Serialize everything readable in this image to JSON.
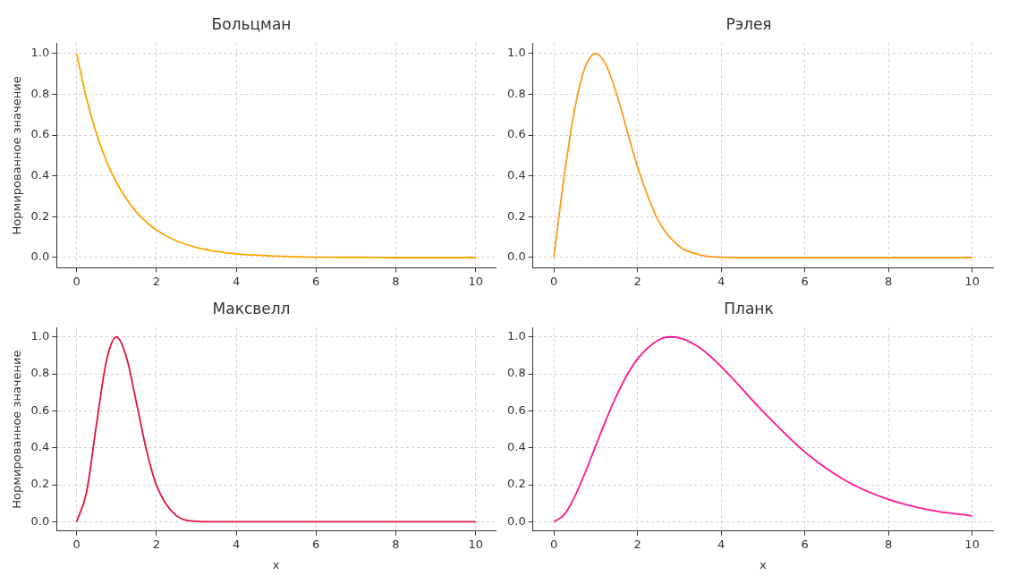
{
  "chart_data": [
    {
      "type": "line",
      "title": "Больцман",
      "ylabel": "Нормированное значение",
      "x": [
        0,
        0.25,
        0.5,
        0.75,
        1,
        1.25,
        1.5,
        1.75,
        2,
        2.5,
        3,
        3.5,
        4,
        5,
        6,
        7,
        8,
        9,
        10
      ],
      "xlim": [
        -0.5,
        10.5
      ],
      "ylim": [
        -0.05,
        1.05
      ],
      "xticks": [
        0,
        2,
        4,
        6,
        8,
        10
      ],
      "yticks": [
        {
          "value": 0,
          "label": "0.0"
        },
        {
          "value": 0.2,
          "label": "0.2"
        },
        {
          "value": 0.4,
          "label": "0.4"
        },
        {
          "value": 0.6,
          "label": "0.6"
        },
        {
          "value": 0.8,
          "label": "0.8"
        },
        {
          "value": 1,
          "label": "1.0"
        }
      ],
      "grid": true,
      "series": [
        {
          "color": "#ffa500",
          "values": [
            1,
            0.779,
            0.607,
            0.472,
            0.368,
            0.287,
            0.223,
            0.174,
            0.135,
            0.082,
            0.05,
            0.03,
            0.018,
            0.007,
            0.002,
            0.001,
            0,
            0,
            0
          ]
        }
      ]
    },
    {
      "type": "line",
      "title": "Рэлея",
      "x": [
        0,
        0.25,
        0.5,
        0.75,
        1,
        1.25,
        1.5,
        1.75,
        2,
        2.5,
        3,
        3.5,
        4,
        5,
        6,
        7,
        8,
        9,
        10
      ],
      "xlim": [
        -0.5,
        10.5
      ],
      "ylim": [
        -0.05,
        1.05
      ],
      "xticks": [
        0,
        2,
        4,
        6,
        8,
        10
      ],
      "yticks": [
        {
          "value": 0,
          "label": "0.0"
        },
        {
          "value": 0.2,
          "label": "0.2"
        },
        {
          "value": 0.4,
          "label": "0.4"
        },
        {
          "value": 0.6,
          "label": "0.6"
        },
        {
          "value": 0.8,
          "label": "0.8"
        },
        {
          "value": 1,
          "label": "1.0"
        }
      ],
      "grid": true,
      "series": [
        {
          "color": "#ff9a1a",
          "values": [
            0,
            0.4,
            0.728,
            0.933,
            1,
            0.944,
            0.803,
            0.624,
            0.446,
            0.181,
            0.055,
            0.013,
            0.002,
            0,
            0,
            0,
            0,
            0,
            0
          ]
        }
      ]
    },
    {
      "type": "line",
      "title": "Максвелл",
      "ylabel": "Нормированное значение",
      "xlabel": "x",
      "x": [
        0,
        0.25,
        0.5,
        0.75,
        1,
        1.25,
        1.5,
        1.75,
        2,
        2.5,
        3,
        3.5,
        4,
        5,
        6,
        7,
        8,
        9,
        10
      ],
      "xlim": [
        -0.5,
        10.5
      ],
      "ylim": [
        -0.05,
        1.05
      ],
      "xticks": [
        0,
        2,
        4,
        6,
        8,
        10
      ],
      "yticks": [
        {
          "value": 0,
          "label": "0.0"
        },
        {
          "value": 0.2,
          "label": "0.2"
        },
        {
          "value": 0.4,
          "label": "0.4"
        },
        {
          "value": 0.6,
          "label": "0.6"
        },
        {
          "value": 0.8,
          "label": "0.8"
        },
        {
          "value": 1,
          "label": "1.0"
        }
      ],
      "grid": true,
      "series": [
        {
          "color": "#dc143c",
          "values": [
            0,
            0.16,
            0.529,
            0.871,
            1,
            0.89,
            0.645,
            0.389,
            0.199,
            0.033,
            0.003,
            0,
            0,
            0,
            0,
            0,
            0,
            0,
            0
          ]
        }
      ]
    },
    {
      "type": "line",
      "title": "Планк",
      "xlabel": "x",
      "x": [
        0,
        0.25,
        0.5,
        0.75,
        1,
        1.25,
        1.5,
        1.75,
        2,
        2.5,
        2.75,
        3,
        3.5,
        4,
        5,
        6,
        7,
        8,
        9,
        10
      ],
      "xlim": [
        -0.5,
        10.5
      ],
      "ylim": [
        -0.05,
        1.05
      ],
      "xticks": [
        0,
        2,
        4,
        6,
        8,
        10
      ],
      "yticks": [
        {
          "value": 0,
          "label": "0.0"
        },
        {
          "value": 0.2,
          "label": "0.2"
        },
        {
          "value": 0.4,
          "label": "0.4"
        },
        {
          "value": 0.6,
          "label": "0.6"
        },
        {
          "value": 0.8,
          "label": "0.8"
        },
        {
          "value": 1,
          "label": "1.0"
        }
      ],
      "grid": true,
      "series": [
        {
          "color": "#ff1493",
          "values": [
            0,
            0.039,
            0.136,
            0.266,
            0.41,
            0.552,
            0.682,
            0.793,
            0.881,
            0.983,
            1,
            0.995,
            0.939,
            0.84,
            0.597,
            0.378,
            0.22,
            0.121,
            0.063,
            0.032
          ]
        }
      ]
    }
  ]
}
